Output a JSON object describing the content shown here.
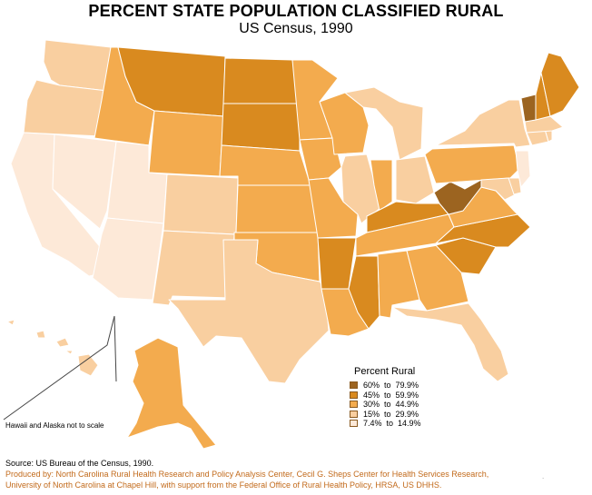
{
  "header": {
    "title": "PERCENT STATE POPULATION CLASSIFIED RURAL",
    "subtitle": "US Census, 1990"
  },
  "legend": {
    "title": "Percent Rural",
    "classes": [
      {
        "label": "60%  to  79.9%",
        "color": "#9c6420"
      },
      {
        "label": "45%  to  59.9%",
        "color": "#d98a1f"
      },
      {
        "label": "30%  to  44.9%",
        "color": "#f3ab4e"
      },
      {
        "label": "15%  to  29.9%",
        "color": "#f9cfa0"
      },
      {
        "label": "7.4%  to  14.9%",
        "color": "#fde9d8"
      }
    ]
  },
  "note": "Hawaii and Alaska not to scale",
  "footer": {
    "source": "Source: US Bureau of the Census, 1990.",
    "credit_line1": "Produced by: North Carolina Rural Health Research and Policy Analysis Center, Cecil G. Sheps Center for Health Services Research,",
    "credit_line2": "University of North Carolina at Chapel Hill, with support from the Federal Office of Rural Health Policy, HRSA, US DHHS.",
    "mark": "."
  },
  "colors": {
    "c60": "#9c6420",
    "c45": "#d98a1f",
    "c30": "#f3ab4e",
    "c15": "#f9cfa0",
    "c07": "#fde9d8",
    "border": "#ffffff",
    "frame": "#444444"
  },
  "map_classes": {
    "WA": "c15",
    "OR": "c15",
    "CA": "c07",
    "NV": "c07",
    "ID": "c30",
    "MT": "c45",
    "WY": "c30",
    "UT": "c07",
    "AZ": "c07",
    "CO": "c15",
    "NM": "c15",
    "ND": "c45",
    "SD": "c45",
    "NE": "c30",
    "KS": "c30",
    "OK": "c30",
    "TX": "c15",
    "MN": "c30",
    "IA": "c30",
    "MO": "c30",
    "AR": "c45",
    "LA": "c30",
    "WI": "c30",
    "IL": "c15",
    "MI": "c15",
    "IN": "c30",
    "OH": "c15",
    "KY": "c45",
    "TN": "c30",
    "MS": "c45",
    "AL": "c30",
    "GA": "c30",
    "FL": "c15",
    "SC": "c45",
    "NC": "c45",
    "VA": "c30",
    "WV": "c60",
    "PA": "c30",
    "NY": "c15",
    "VT": "c60",
    "NH": "c45",
    "ME": "c45",
    "MA": "c15",
    "CT": "c15",
    "RI": "c15",
    "NJ": "c07",
    "DE": "c15",
    "MD": "c15",
    "AK": "c30",
    "HI": "c15"
  }
}
